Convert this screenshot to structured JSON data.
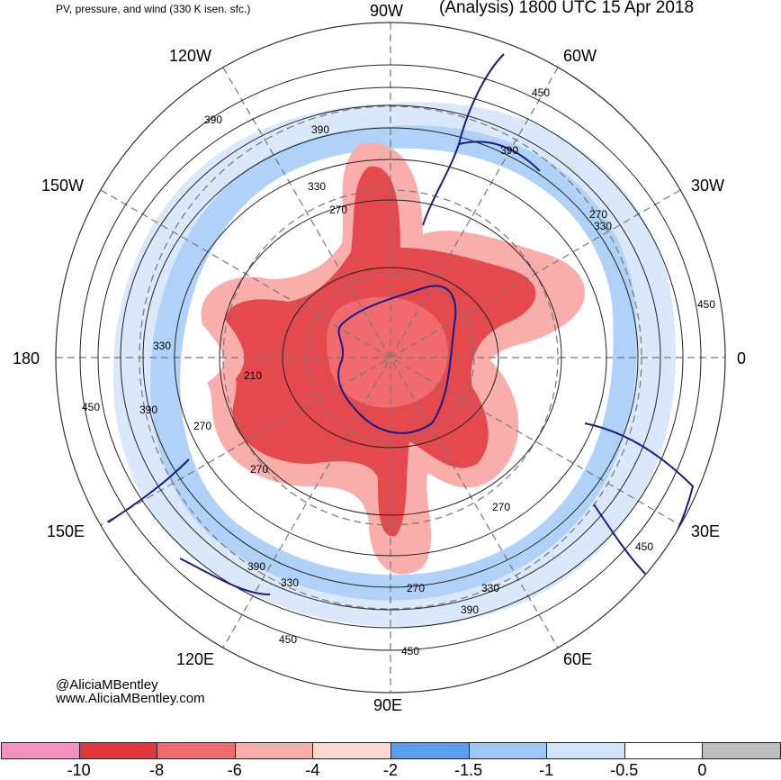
{
  "header": {
    "subtitle": "PV, pressure, and wind (330 K isen. sfc.)",
    "title": "(Analysis) 1800 UTC 15 Apr 2018"
  },
  "longitude_labels": {
    "n90w": "90W",
    "n60w": "60W",
    "n30w": "30W",
    "n0": "0",
    "n30e": "30E",
    "n60e": "60E",
    "n90e": "90E",
    "n120e": "120E",
    "n150e": "150E",
    "n180": "180",
    "n150w": "150W",
    "n120w": "120W"
  },
  "contour_labels": [
    "390",
    "390",
    "330",
    "270",
    "210",
    "270",
    "270",
    "390",
    "330",
    "270",
    "450",
    "270",
    "330",
    "450",
    "450",
    "270",
    "330",
    "390",
    "450",
    "450",
    "390",
    "330",
    "390",
    "450"
  ],
  "credits": {
    "handle": "@AliciaMBentley",
    "website": "www.AliciaMBentley.com"
  },
  "colorbar": {
    "colors": [
      "#f48fc0",
      "#e0373c",
      "#f06a6e",
      "#f9aeab",
      "#fcd8d3",
      "#5a9ef0",
      "#9ec8f7",
      "#cfe3fa",
      "#ffffff",
      "#bdbdbd"
    ],
    "tick_labels": [
      "-10",
      "-8",
      "-6",
      "-4",
      "-2",
      "-1.5",
      "-1",
      "-0.5",
      "0"
    ]
  },
  "map_colors": {
    "strong_pv": "#e0373c",
    "medium_pv": "#f9aeab",
    "light_blue": "#9ec8f7",
    "pale_blue": "#cfe3fa",
    "coastline": "#1a1a8c",
    "grey": "#bdbdbd"
  }
}
